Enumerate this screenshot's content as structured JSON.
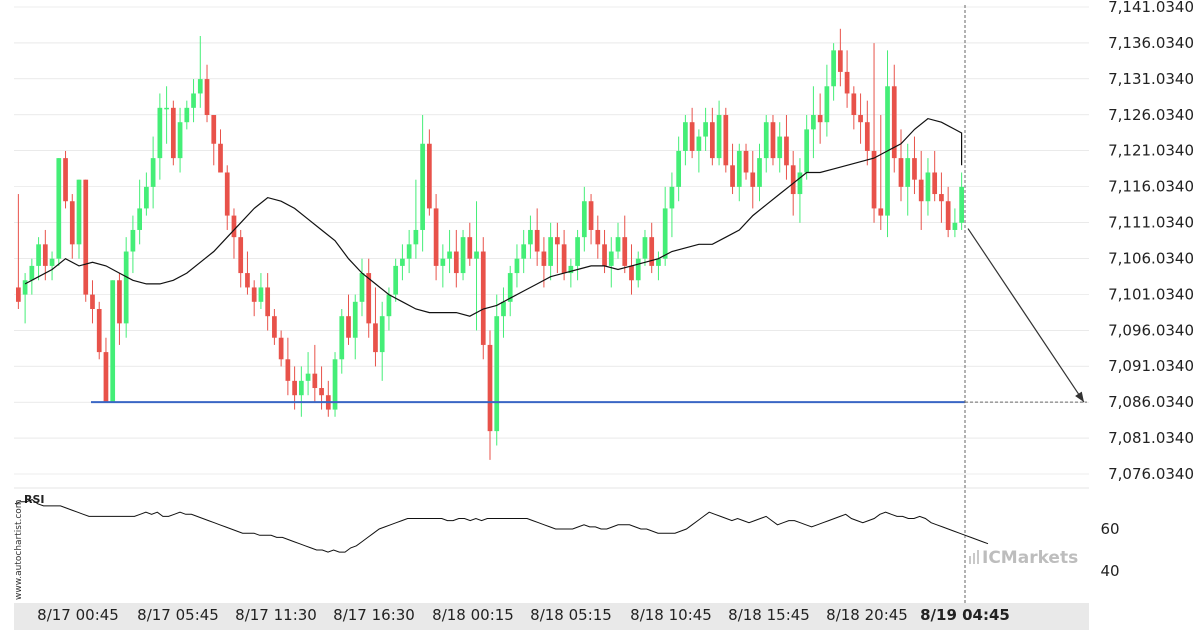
{
  "chart_data": [
    {
      "type": "candlestick",
      "title": "",
      "ylim": [
        7073,
        7142
      ],
      "y_ticks": [
        "7,141.0340",
        "7,136.0340",
        "7,131.0340",
        "7,126.0340",
        "7,121.0340",
        "7,116.0340",
        "7,111.0340",
        "7,106.0340",
        "7,101.0340",
        "7,096.0340",
        "7,091.0340",
        "7,086.0340",
        "7,081.0340",
        "7,076.0340"
      ],
      "y_tick_values": [
        7141.034,
        7136.034,
        7131.034,
        7126.034,
        7121.034,
        7116.034,
        7111.034,
        7106.034,
        7101.034,
        7096.034,
        7091.034,
        7086.034,
        7081.034,
        7076.034
      ],
      "x_ticks": [
        "8/17 00:45",
        "8/17 05:45",
        "8/17 11:30",
        "8/17 16:30",
        "8/18 00:15",
        "8/18 05:15",
        "8/18 10:45",
        "8/18 15:45",
        "8/18 20:45",
        "8/19 04:45"
      ],
      "bold_x_tick": "8/19 04:45",
      "support_level": 7086.034,
      "projection": {
        "from": 7110.2,
        "to": 7086.034
      },
      "colors": {
        "up": "#44ee77",
        "down": "#e8524a",
        "ma": "#111111",
        "support": "#3a66c4",
        "grid": "#dddddd"
      },
      "ohlc": [
        [
          7102,
          7115,
          7099,
          7100
        ],
        [
          7101,
          7104,
          7097,
          7103
        ],
        [
          7103,
          7106,
          7101,
          7105
        ],
        [
          7105,
          7109,
          7103,
          7108
        ],
        [
          7108,
          7110,
          7103,
          7105
        ],
        [
          7105,
          7107,
          7103,
          7106
        ],
        [
          7106,
          7120,
          7105,
          7120
        ],
        [
          7120,
          7121,
          7113,
          7114
        ],
        [
          7114,
          7115,
          7106,
          7108
        ],
        [
          7108,
          7117,
          7106,
          7117
        ],
        [
          7117,
          7117,
          7100,
          7101
        ],
        [
          7101,
          7103,
          7097,
          7099
        ],
        [
          7099,
          7100,
          7092,
          7093
        ],
        [
          7093,
          7095,
          7086,
          7086
        ],
        [
          7086,
          7103,
          7086,
          7103
        ],
        [
          7103,
          7104,
          7094,
          7097
        ],
        [
          7097,
          7109,
          7095,
          7107
        ],
        [
          7107,
          7112,
          7104,
          7110
        ],
        [
          7110,
          7117,
          7108,
          7113
        ],
        [
          7113,
          7118,
          7112,
          7116
        ],
        [
          7116,
          7123,
          7113,
          7120
        ],
        [
          7120,
          7129,
          7117,
          7127
        ],
        [
          7127,
          7130,
          7122,
          7127
        ],
        [
          7127,
          7128,
          7119,
          7120
        ],
        [
          7120,
          7127,
          7118,
          7125
        ],
        [
          7125,
          7128,
          7124,
          7127
        ],
        [
          7127,
          7131,
          7125,
          7129
        ],
        [
          7129,
          7137,
          7127,
          7131
        ],
        [
          7131,
          7133,
          7125,
          7126
        ],
        [
          7126,
          7126,
          7119,
          7122
        ],
        [
          7122,
          7124,
          7118,
          7118
        ],
        [
          7118,
          7119,
          7110,
          7112
        ],
        [
          7112,
          7113,
          7106,
          7109
        ],
        [
          7109,
          7110,
          7102,
          7104
        ],
        [
          7104,
          7107,
          7101,
          7102
        ],
        [
          7102,
          7103,
          7098,
          7100
        ],
        [
          7100,
          7104,
          7099,
          7102
        ],
        [
          7102,
          7104,
          7096,
          7098
        ],
        [
          7098,
          7099,
          7094,
          7095
        ],
        [
          7095,
          7096,
          7091,
          7092
        ],
        [
          7092,
          7095,
          7087,
          7089
        ],
        [
          7089,
          7091,
          7085,
          7087
        ],
        [
          7087,
          7091,
          7084,
          7089
        ],
        [
          7089,
          7093,
          7087,
          7090
        ],
        [
          7090,
          7094,
          7086,
          7088
        ],
        [
          7088,
          7091,
          7085,
          7087
        ],
        [
          7087,
          7089,
          7084,
          7085
        ],
        [
          7085,
          7093,
          7084,
          7092
        ],
        [
          7092,
          7099,
          7090,
          7098
        ],
        [
          7098,
          7101,
          7094,
          7095
        ],
        [
          7095,
          7101,
          7092,
          7100
        ],
        [
          7100,
          7106,
          7098,
          7104
        ],
        [
          7104,
          7106,
          7095,
          7097
        ],
        [
          7097,
          7102,
          7091,
          7093
        ],
        [
          7093,
          7100,
          7089,
          7098
        ],
        [
          7098,
          7102,
          7096,
          7101
        ],
        [
          7101,
          7106,
          7100,
          7105
        ],
        [
          7105,
          7108,
          7103,
          7106
        ],
        [
          7106,
          7110,
          7104,
          7108
        ],
        [
          7108,
          7117,
          7106,
          7110
        ],
        [
          7110,
          7126,
          7107,
          7122
        ],
        [
          7122,
          7124,
          7112,
          7113
        ],
        [
          7113,
          7115,
          7103,
          7105
        ],
        [
          7105,
          7108,
          7102,
          7106
        ],
        [
          7106,
          7110,
          7104,
          7107
        ],
        [
          7107,
          7110,
          7102,
          7104
        ],
        [
          7104,
          7110,
          7103,
          7109
        ],
        [
          7109,
          7111,
          7105,
          7106
        ],
        [
          7106,
          7114,
          7096,
          7107
        ],
        [
          7107,
          7109,
          7092,
          7094
        ],
        [
          7094,
          7096,
          7078,
          7082
        ],
        [
          7082,
          7101,
          7080,
          7098
        ],
        [
          7098,
          7102,
          7095,
          7100
        ],
        [
          7100,
          7105,
          7098,
          7104
        ],
        [
          7104,
          7108,
          7102,
          7106
        ],
        [
          7106,
          7110,
          7104,
          7108
        ],
        [
          7108,
          7112,
          7106,
          7110
        ],
        [
          7110,
          7113,
          7105,
          7107
        ],
        [
          7107,
          7109,
          7102,
          7105
        ],
        [
          7105,
          7111,
          7103,
          7109
        ],
        [
          7109,
          7111,
          7104,
          7108
        ],
        [
          7108,
          7110,
          7103,
          7104
        ],
        [
          7104,
          7106,
          7102,
          7105
        ],
        [
          7105,
          7110,
          7103,
          7109
        ],
        [
          7109,
          7116,
          7107,
          7114
        ],
        [
          7114,
          7115,
          7108,
          7110
        ],
        [
          7110,
          7112,
          7106,
          7108
        ],
        [
          7108,
          7110,
          7104,
          7105
        ],
        [
          7105,
          7109,
          7102,
          7107
        ],
        [
          7107,
          7111,
          7106,
          7109
        ],
        [
          7109,
          7112,
          7104,
          7105
        ],
        [
          7105,
          7108,
          7101,
          7103
        ],
        [
          7103,
          7107,
          7102,
          7106
        ],
        [
          7106,
          7110,
          7105,
          7109
        ],
        [
          7109,
          7111,
          7104,
          7105
        ],
        [
          7105,
          7107,
          7103,
          7106
        ],
        [
          7106,
          7116,
          7105,
          7113
        ],
        [
          7113,
          7118,
          7109,
          7116
        ],
        [
          7116,
          7123,
          7114,
          7121
        ],
        [
          7121,
          7126,
          7119,
          7125
        ],
        [
          7125,
          7127,
          7120,
          7121
        ],
        [
          7121,
          7124,
          7118,
          7123
        ],
        [
          7123,
          7127,
          7121,
          7125
        ],
        [
          7125,
          7127,
          7119,
          7120
        ],
        [
          7120,
          7128,
          7119,
          7126
        ],
        [
          7126,
          7127,
          7118,
          7119
        ],
        [
          7119,
          7122,
          7115,
          7116
        ],
        [
          7116,
          7122,
          7114,
          7121
        ],
        [
          7121,
          7122,
          7117,
          7118
        ],
        [
          7118,
          7121,
          7113,
          7116
        ],
        [
          7116,
          7122,
          7114,
          7120
        ],
        [
          7120,
          7126,
          7118,
          7125
        ],
        [
          7125,
          7126,
          7119,
          7120
        ],
        [
          7120,
          7125,
          7118,
          7123
        ],
        [
          7123,
          7126,
          7117,
          7119
        ],
        [
          7119,
          7121,
          7112,
          7115
        ],
        [
          7115,
          7120,
          7111,
          7118
        ],
        [
          7118,
          7126,
          7117,
          7124
        ],
        [
          7124,
          7130,
          7120,
          7126
        ],
        [
          7126,
          7129,
          7122,
          7125
        ],
        [
          7125,
          7133,
          7123,
          7130
        ],
        [
          7130,
          7136,
          7128,
          7135
        ],
        [
          7135,
          7138,
          7130,
          7132
        ],
        [
          7132,
          7135,
          7127,
          7129
        ],
        [
          7129,
          7130,
          7124,
          7126
        ],
        [
          7126,
          7129,
          7122,
          7125
        ],
        [
          7125,
          7128,
          7119,
          7121
        ],
        [
          7121,
          7136,
          7111,
          7113
        ],
        [
          7113,
          7126,
          7110,
          7112
        ],
        [
          7112,
          7135,
          7109,
          7130
        ],
        [
          7130,
          7133,
          7118,
          7120
        ],
        [
          7120,
          7124,
          7114,
          7116
        ],
        [
          7116,
          7122,
          7112,
          7120
        ],
        [
          7120,
          7123,
          7115,
          7117
        ],
        [
          7117,
          7121,
          7110,
          7114
        ],
        [
          7114,
          7120,
          7112,
          7118
        ],
        [
          7118,
          7121,
          7114,
          7115
        ],
        [
          7115,
          7118,
          7111,
          7114
        ],
        [
          7114,
          7116,
          7109,
          7110
        ],
        [
          7110,
          7113,
          7109,
          7111
        ],
        [
          7111,
          7118,
          7110,
          7116
        ]
      ],
      "ma_values": [
        7102.5,
        7103.5,
        7104.5,
        7106,
        7105,
        7105.5,
        7105,
        7104,
        7103,
        7102.5,
        7102.5,
        7103,
        7104,
        7105.5,
        7107,
        7109,
        7111,
        7113,
        7114.5,
        7114,
        7113,
        7111.5,
        7110,
        7108.5,
        7106,
        7104,
        7102.5,
        7101,
        7100,
        7099,
        7098.5,
        7098.5,
        7098.5,
        7098,
        7099,
        7099.5,
        7100.5,
        7101.5,
        7102.5,
        7103.5,
        7104,
        7104.5,
        7105,
        7105,
        7104.5,
        7105,
        7105.5,
        7106,
        7107,
        7107.5,
        7108,
        7108,
        7109,
        7110,
        7112,
        7113.5,
        7115,
        7116.5,
        7118,
        7118,
        7118.5,
        7119,
        7119.5,
        7120,
        7121,
        7122,
        7124,
        7125.5,
        7125,
        7124,
        7123.5,
        7122.5,
        7121,
        7119
      ],
      "ma_x_step": 2
    },
    {
      "type": "line",
      "title": "",
      "ylabel": "RSI",
      "y_ticks": [
        "60",
        "40"
      ],
      "y_tick_values": [
        60,
        40
      ],
      "ylim": [
        32,
        82
      ],
      "values": [
        72,
        73,
        73,
        74,
        72,
        71,
        71,
        71,
        71,
        70,
        69,
        68,
        67,
        66,
        66,
        66,
        66,
        66,
        66,
        66,
        66,
        66,
        67,
        68,
        67,
        68,
        66,
        66,
        67,
        68,
        67,
        67,
        66,
        65,
        64,
        63,
        62,
        61,
        60,
        59,
        58,
        58,
        58,
        57,
        57,
        57,
        56,
        56,
        55,
        54,
        53,
        52,
        51,
        50,
        50,
        49,
        50,
        49,
        49,
        51,
        52,
        54,
        56,
        58,
        60,
        61,
        62,
        63,
        64,
        65,
        65,
        65,
        65,
        65,
        65,
        65,
        64,
        64,
        65,
        65,
        64,
        65,
        64,
        65,
        65,
        65,
        65,
        65,
        65,
        65,
        65,
        64,
        63,
        62,
        61,
        60,
        60,
        60,
        60,
        61,
        62,
        61,
        61,
        60,
        60,
        61,
        62,
        62,
        62,
        61,
        60,
        60,
        59,
        58,
        58,
        58,
        58,
        59,
        60,
        62,
        64,
        66,
        68,
        67,
        66,
        65,
        64,
        65,
        64,
        63,
        64,
        65,
        66,
        64,
        62,
        63,
        64,
        64,
        63,
        62,
        61,
        62,
        63,
        64,
        65,
        66,
        67,
        65,
        64,
        63,
        64,
        65,
        67,
        68,
        67,
        66,
        66,
        65,
        65,
        66,
        65,
        63,
        62,
        61,
        60,
        59,
        58,
        57,
        56,
        55,
        54,
        53
      ]
    }
  ],
  "labels": {
    "watermark": "www.autochartist.com",
    "brand": "ICMarkets",
    "rsi": "RSI"
  }
}
